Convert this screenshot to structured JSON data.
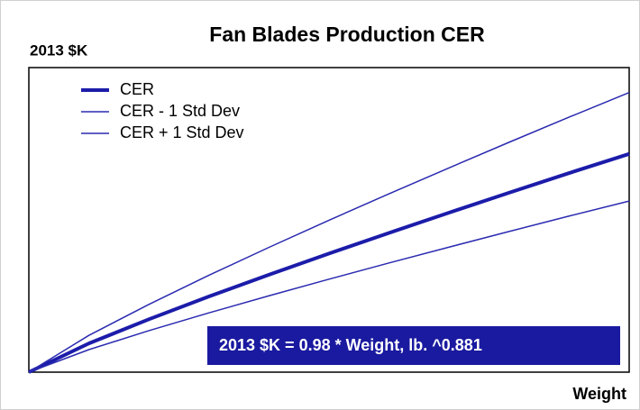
{
  "chart_data": {
    "type": "line",
    "title": "Fan Blades Production CER",
    "y_label": "2013 $K",
    "x_label": "Weight",
    "annotation": "2013 $K = 0.98 * Weight, lb. ^0.881",
    "x": [
      0,
      10,
      20,
      30,
      40,
      50,
      60,
      70,
      80,
      90,
      100
    ],
    "xlim": [
      0,
      100
    ],
    "ylim": [
      0,
      79
    ],
    "series": [
      {
        "name": "CER",
        "color": "#1c1caa",
        "line_width": 4,
        "values": [
          0,
          7.45,
          13.72,
          19.62,
          25.27,
          30.76,
          36.12,
          41.37,
          46.55,
          51.64,
          56.61
        ]
      },
      {
        "name": "CER - 1 Std Dev",
        "color": "#2a2ab0",
        "line_width": 1.5,
        "values": [
          0,
          5.84,
          10.76,
          15.38,
          19.81,
          24.12,
          28.32,
          32.43,
          36.49,
          40.49,
          44.38
        ]
      },
      {
        "name": "CER + 1 Std Dev",
        "color": "#2a2ab0",
        "line_width": 1.5,
        "values": [
          0,
          9.54,
          17.58,
          25.13,
          32.37,
          39.4,
          46.27,
          52.99,
          59.63,
          66.15,
          72.52
        ]
      }
    ]
  }
}
